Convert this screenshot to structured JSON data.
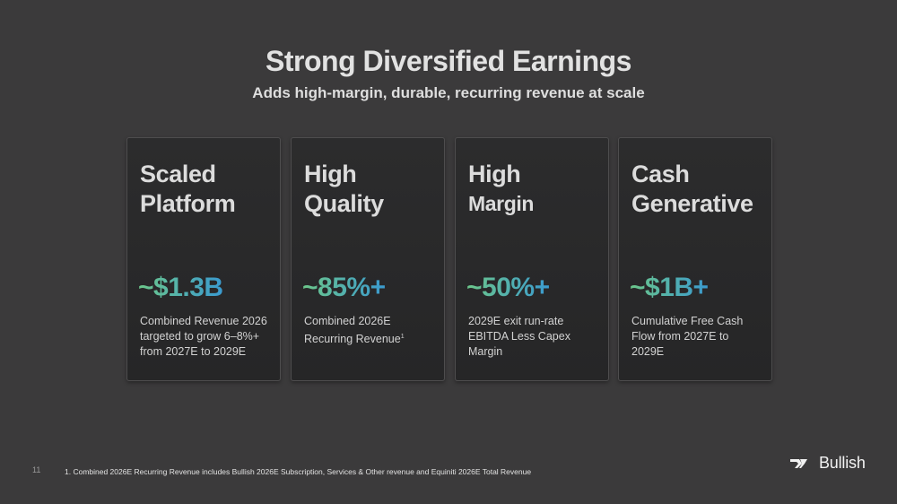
{
  "slide": {
    "title": "Strong Diversified Earnings",
    "subtitle": "Adds high-margin, durable, recurring revenue at scale",
    "page_number": "11",
    "footnote": "1. Combined 2026E Recurring Revenue includes Bullish 2026E Subscription, Services & Other revenue and Equiniti 2026E Total Revenue",
    "logo_text": "Bullish"
  },
  "cards": [
    {
      "heading_line1": "Scaled",
      "heading_line2": "Platform",
      "value": "~$1.3B",
      "description": "Combined Revenue 2026 targeted to grow 6–8%+ from 2027E to 2029E"
    },
    {
      "heading_line1": "High",
      "heading_line2": "Quality",
      "value": "~85%+",
      "description": "Combined 2026E Recurring Revenue",
      "footnote_marker": "1"
    },
    {
      "heading_line1": "High",
      "heading_line2": "Margin",
      "value": "~50%+",
      "description": "2029E exit run-rate EBITDA Less Capex Margin"
    },
    {
      "heading_line1": "Cash",
      "heading_line2": "Generative",
      "value": "~$1B+",
      "description": "Cumulative Free Cash Flow from 2027E to 2029E"
    }
  ],
  "colors": {
    "background": "#3b3a3b",
    "card": "#2a2a2b",
    "value_gradient_start": "#6cc78a",
    "value_gradient_end": "#3a9ad0"
  }
}
